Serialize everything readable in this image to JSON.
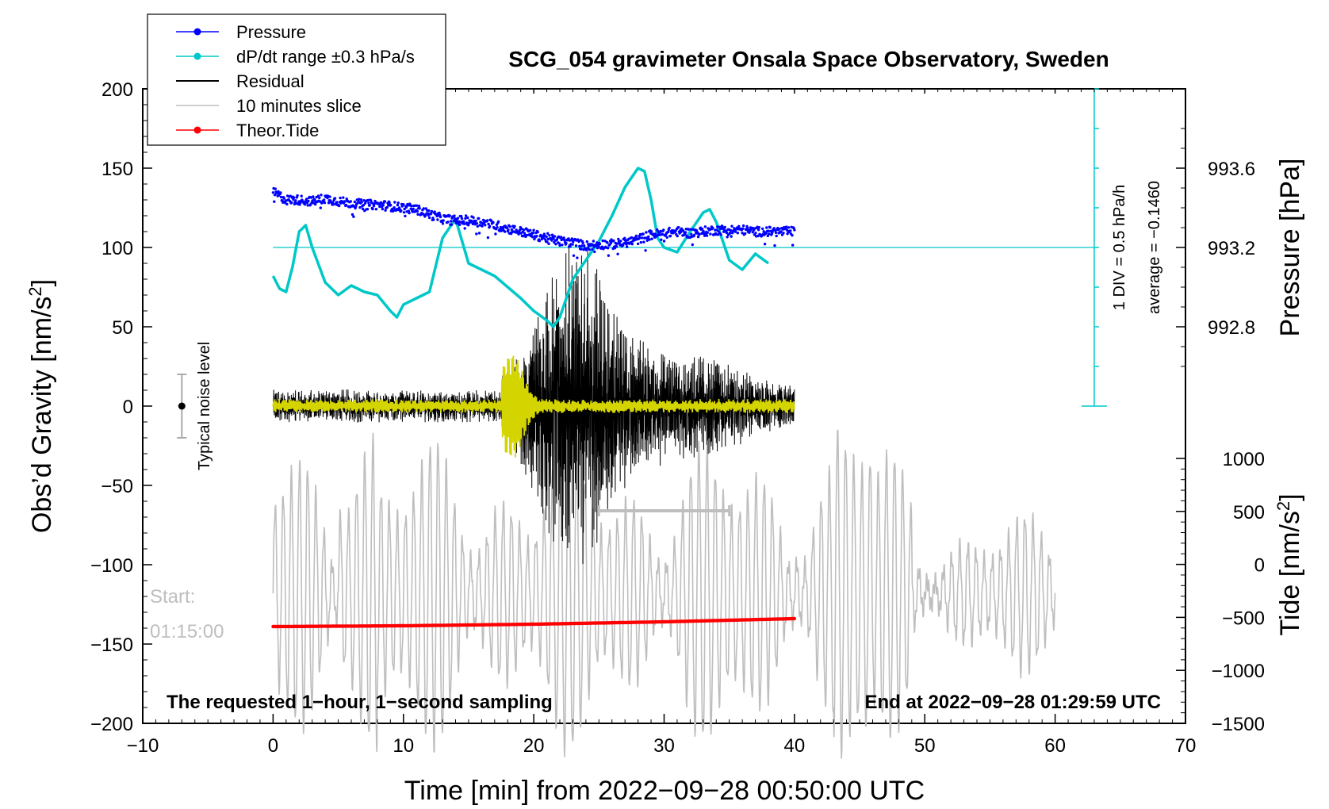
{
  "chart_data": {
    "type": "line",
    "title": "SCG_054 gravimeter Onsala Space Observatory, Sweden",
    "xlabel": "Time [min] from 2022−09−28 00:50:00 UTC",
    "ylabel_left": "Obs’d Gravity [nm/s",
    "ylabel_left_sup": "2",
    "ylabel_left_end": "]",
    "ylabel_right_top": "Pressure [hPa]",
    "ylabel_right_bottom": "Tide [nm/s",
    "ylabel_right_bottom_sup": "2",
    "ylabel_right_bottom_end": "]",
    "xlim": [
      -10,
      70
    ],
    "ylim": [
      -200,
      200
    ],
    "xticks": [
      -10,
      0,
      10,
      20,
      30,
      40,
      50,
      60,
      70
    ],
    "xtick_labels": [
      "−10",
      "0",
      "10",
      "20",
      "30",
      "40",
      "50",
      "60",
      "70"
    ],
    "yticks": [
      200,
      150,
      100,
      50,
      0,
      -50,
      -100,
      -150,
      -200
    ],
    "ytick_labels": [
      "200",
      "150",
      "100",
      "50",
      "0",
      "−50",
      "−100",
      "−150",
      "−200"
    ],
    "pressure_ticks": [
      993.6,
      993.2,
      992.8
    ],
    "pressure_tick_labels": [
      "993.6",
      "993.2",
      "992.8"
    ],
    "pressure_axis": {
      "value_at_y100": 993.2,
      "hpa_per_gravity_unit": 0.008
    },
    "tide_ticks": [
      1000,
      500,
      0,
      -500,
      -1000,
      -1500
    ],
    "tide_tick_labels": [
      "1000",
      "500",
      "0",
      "−500",
      "−1000",
      "−1500"
    ],
    "tide_axis": {
      "value_at_y_bottom": -1500,
      "value_at_y_top": 1000,
      "y_bottom": -200,
      "y_top": -33
    },
    "legend": [
      {
        "label": "Pressure",
        "color": "#0000ff",
        "marker": true
      },
      {
        "label": "dP/dt range ±0.3 hPa/s",
        "color": "#00c8c8",
        "marker": true
      },
      {
        "label": "Residual",
        "color": "#000000",
        "marker": false
      },
      {
        "label": "10 minutes slice",
        "color": "#bebebe",
        "marker": false
      },
      {
        "label": "Theor.Tide",
        "color": "#ff0000",
        "marker": true
      }
    ],
    "colors": {
      "pressure": "#0000ff",
      "dpdt": "#00c8c8",
      "residual": "#000000",
      "filtered": "#d4d400",
      "slice": "#bebebe",
      "tide": "#ff0000"
    },
    "series": [
      {
        "name": "Pressure",
        "x": [
          0,
          1,
          2,
          3,
          4,
          5,
          6,
          7,
          8,
          9,
          10,
          11,
          12,
          13,
          14,
          15,
          16,
          17,
          18,
          19,
          20,
          21,
          22,
          23,
          24,
          25,
          26,
          27,
          28,
          29,
          30,
          31,
          32,
          33,
          34,
          35,
          36,
          37,
          38,
          39,
          40
        ],
        "y": [
          135,
          130,
          130,
          129,
          131,
          129,
          128,
          127,
          127,
          126,
          125,
          124,
          121,
          118,
          117,
          117,
          116,
          114,
          112,
          110,
          108,
          106,
          104,
          103,
          101,
          102,
          102,
          103,
          105,
          108,
          109,
          110,
          109,
          110,
          111,
          111,
          111,
          110,
          110,
          110,
          110
        ]
      },
      {
        "name": "dP/dt range ±0.3 hPa/s",
        "x": [
          0,
          0.5,
          1,
          1.5,
          2,
          2.5,
          3,
          4,
          5,
          6,
          7,
          8,
          9,
          9.5,
          10,
          11,
          12,
          13,
          14,
          15,
          16,
          17,
          18,
          19,
          20,
          21,
          21.5,
          22,
          23,
          24,
          25,
          26,
          27,
          28,
          28.5,
          29,
          29.5,
          30,
          31,
          32,
          33,
          33.5,
          34,
          35,
          36,
          37,
          38
        ],
        "y": [
          82,
          74,
          72,
          88,
          110,
          114,
          100,
          78,
          70,
          76,
          72,
          70,
          60,
          56,
          64,
          68,
          72,
          106,
          118,
          90,
          86,
          82,
          75,
          68,
          60,
          54,
          50,
          56,
          80,
          92,
          104,
          120,
          138,
          150,
          148,
          130,
          106,
          100,
          97,
          110,
          122,
          124,
          116,
          92,
          86,
          96,
          90
        ]
      },
      {
        "name": "Residual",
        "x_range": [
          0,
          40
        ],
        "y": "oscillation around 0, peak amplitude ~95 near x=22–26"
      },
      {
        "name": "10 minutes slice",
        "x_range": [
          0,
          60
        ],
        "y": "oscillation around -120, amplitude up to ~90"
      },
      {
        "name": "Theor.Tide",
        "x": [
          0,
          10,
          20,
          30,
          40
        ],
        "y": [
          -139,
          -138.5,
          -137.5,
          -136,
          -134
        ]
      }
    ],
    "pressure_ref_line": 100,
    "scale_bar": {
      "label": "1 DIV = 0.5 hPa/h",
      "x": 63,
      "y_from": 0,
      "y_to": 200,
      "div": 25
    },
    "average_text": "average = −0.1460",
    "slice_bracket": {
      "x_from": 25,
      "x_to": 35,
      "y": -66
    },
    "noise_bar": {
      "x": -7,
      "center": 0,
      "half": 20,
      "label": "Typical noise level"
    },
    "annotations": {
      "start_label": "Start:",
      "start_time": "01:15:00",
      "bottom_left": "The requested 1−hour, 1−second sampling",
      "bottom_right": "End at 2022−09−28 01:29:59 UTC"
    }
  }
}
